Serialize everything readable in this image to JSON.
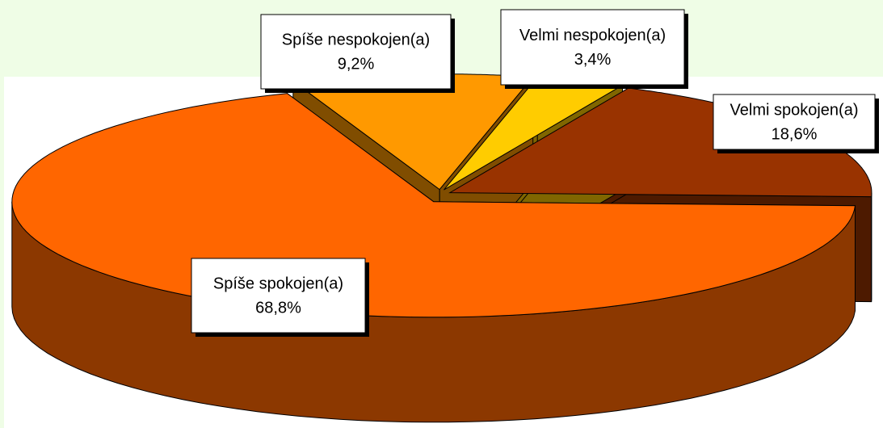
{
  "chart_data": {
    "type": "pie",
    "categories": [
      "Velmi spokojen(a)",
      "Velmi nespokojen(a)",
      "Spíše nespokojen(a)",
      "Spíše spokojen(a)"
    ],
    "values": [
      18.6,
      3.4,
      9.2,
      68.8
    ],
    "value_labels": [
      "18,6%",
      "3,4%",
      "9,2%",
      "68,8%"
    ],
    "colors": [
      "#993300",
      "#ffcc00",
      "#ff9900",
      "#ff6600"
    ]
  }
}
